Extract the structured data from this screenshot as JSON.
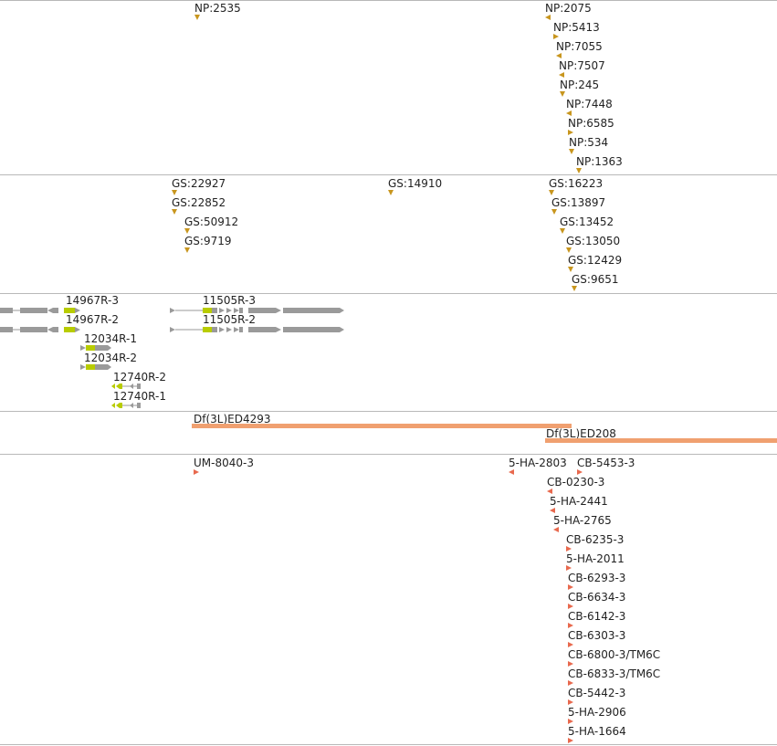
{
  "colors": {
    "marker": "#c8961e",
    "insertion": "#e8694e",
    "deficiency": "#f0a070",
    "gene": "#9a9a9a",
    "cds": "#b8cc00"
  },
  "np_track": [
    "NP:2535",
    "NP:2075",
    "NP:5413",
    "NP:7055",
    "NP:7507",
    "NP:245",
    "NP:7448",
    "NP:6585",
    "NP:534",
    "NP:1363"
  ],
  "gs_track": [
    "GS:22927",
    "GS:22852",
    "GS:50912",
    "GS:9719",
    "GS:14910",
    "GS:16223",
    "GS:13897",
    "GS:13452",
    "GS:13050",
    "GS:12429",
    "GS:9651"
  ],
  "transcripts": [
    "14967R-3",
    "14967R-2",
    "12034R-1",
    "12034R-2",
    "12740R-2",
    "12740R-1",
    "11505R-3",
    "11505R-2"
  ],
  "deficiencies": [
    "Df(3L)ED4293",
    "Df(3L)ED208"
  ],
  "insertions": [
    "UM-8040-3",
    "5-HA-2803",
    "CB-5453-3",
    "CB-0230-3",
    "5-HA-2441",
    "5-HA-2765",
    "CB-6235-3",
    "5-HA-2011",
    "CB-6293-3",
    "CB-6634-3",
    "CB-6142-3",
    "CB-6303-3",
    "CB-6800-3/TM6C",
    "CB-6833-3/TM6C",
    "CB-5442-3",
    "5-HA-2906",
    "5-HA-1664"
  ]
}
